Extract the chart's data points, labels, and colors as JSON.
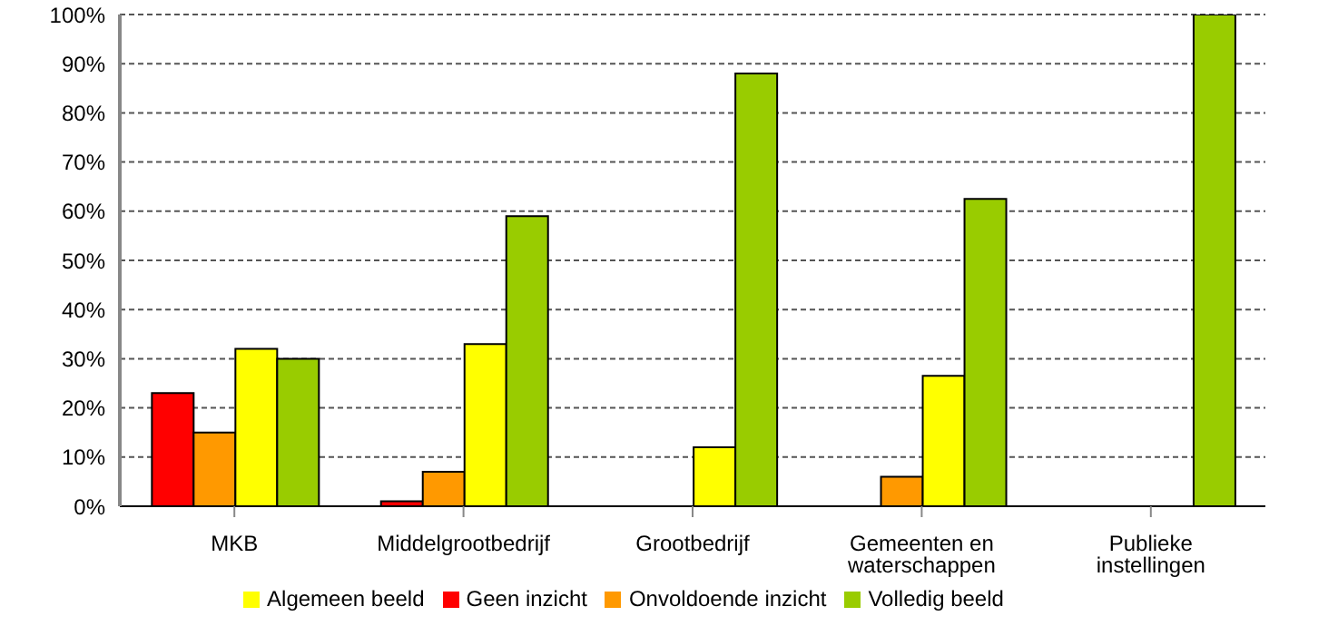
{
  "chart_data": {
    "type": "bar",
    "categories": [
      "MKB",
      "Middelgrootbedrijf",
      "Grootbedrijf",
      "Gemeenten en waterschappen",
      "Publieke instellingen"
    ],
    "series": [
      {
        "name": "Geen inzicht",
        "color": "#ff0000",
        "values": [
          23,
          1,
          null,
          null,
          null
        ]
      },
      {
        "name": "Onvoldoende inzicht",
        "color": "#ff9900",
        "values": [
          15,
          7,
          null,
          6,
          null
        ]
      },
      {
        "name": "Algemeen beeld",
        "color": "#ffff00",
        "values": [
          32,
          33,
          12,
          26.5,
          null
        ]
      },
      {
        "name": "Volledig beeld",
        "color": "#99cc00",
        "values": [
          30,
          59,
          88,
          62.5,
          100
        ]
      }
    ],
    "ylim": [
      0,
      100
    ],
    "yticks": [
      {
        "value": 0,
        "label": "0%"
      },
      {
        "value": 10,
        "label": "10%"
      },
      {
        "value": 20,
        "label": "20%"
      },
      {
        "value": 30,
        "label": "30%"
      },
      {
        "value": 40,
        "label": "40%"
      },
      {
        "value": 50,
        "label": "50%"
      },
      {
        "value": 60,
        "label": "60%"
      },
      {
        "value": 70,
        "label": "70%"
      },
      {
        "value": 80,
        "label": "80%"
      },
      {
        "value": 90,
        "label": "90%"
      },
      {
        "value": 100,
        "label": "100%"
      }
    ],
    "grid": "y",
    "legend": "bottom"
  }
}
